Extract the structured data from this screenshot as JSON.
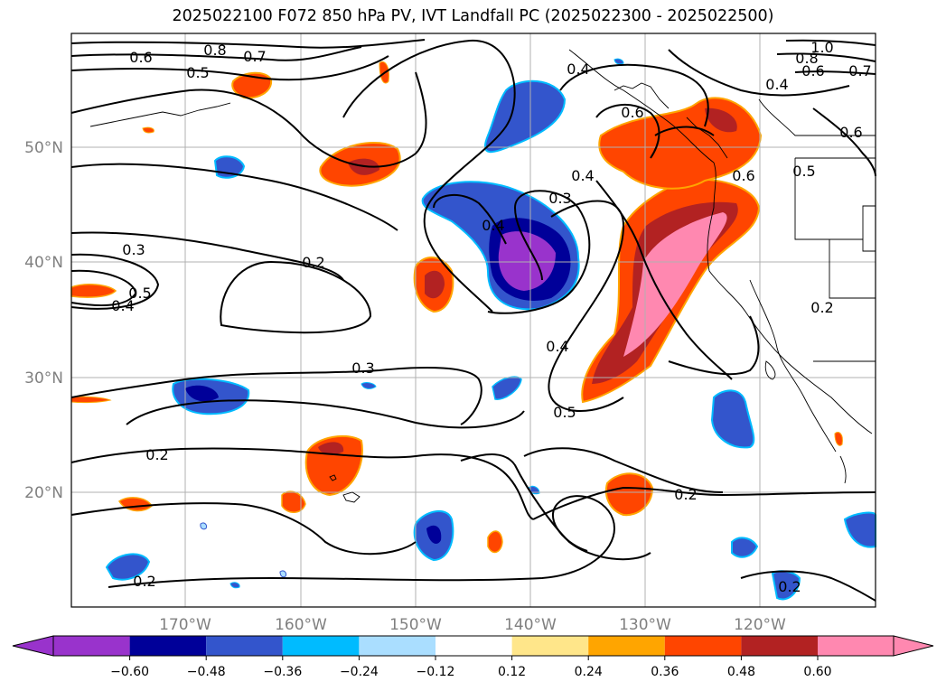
{
  "title": "2025022100 F072 850 hPa PV, IVT Landfall PC (2025022300 - 2025022500)",
  "map": {
    "lat_labels": [
      "50°N",
      "40°N",
      "30°N",
      "20°N"
    ],
    "lon_labels": [
      "170°W",
      "160°W",
      "150°W",
      "140°W",
      "130°W",
      "120°W"
    ],
    "contour_labels": [
      "0.8",
      "0.7",
      "0.6",
      "0.5",
      "0.4",
      "1.0",
      "0.8",
      "0.6",
      "0.7",
      "0.4",
      "0.6",
      "0.4",
      "0.3",
      "0.4",
      "0.6",
      "0.5",
      "0.6",
      "0.3",
      "0.2",
      "0.5",
      "0.4",
      "0.2",
      "0.3",
      "0.4",
      "0.5",
      "0.2",
      "0.2",
      "0.2",
      "0.2"
    ]
  },
  "colorbar": {
    "ticks": [
      "−0.60",
      "−0.48",
      "−0.36",
      "−0.24",
      "−0.12",
      "0.12",
      "0.24",
      "0.36",
      "0.48",
      "0.60"
    ],
    "colors": [
      "#9933cc",
      "#000099",
      "#3355cc",
      "#00bbff",
      "#aadeff",
      "#ffffff",
      "#ffe68a",
      "#ffa500",
      "#ff4500",
      "#b22222",
      "#ff88b0"
    ]
  }
}
